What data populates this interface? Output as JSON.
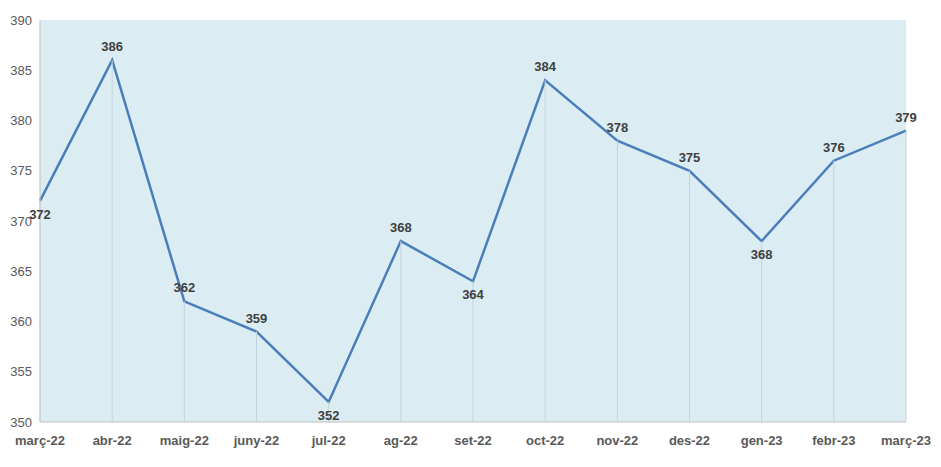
{
  "chart_data": {
    "type": "line",
    "categories": [
      "març-22",
      "abr-22",
      "maig-22",
      "juny-22",
      "jul-22",
      "ag-22",
      "set-22",
      "oct-22",
      "nov-22",
      "des-22",
      "gen-23",
      "febr-23",
      "març-23"
    ],
    "values": [
      372,
      386,
      362,
      359,
      352,
      368,
      364,
      384,
      378,
      375,
      368,
      376,
      379
    ],
    "color": "#4a7ebb",
    "ylim": [
      350,
      390
    ],
    "yticks": [
      350,
      355,
      360,
      365,
      370,
      375,
      380,
      385,
      390
    ],
    "grid": false,
    "data_labels": true,
    "marker": "none"
  }
}
